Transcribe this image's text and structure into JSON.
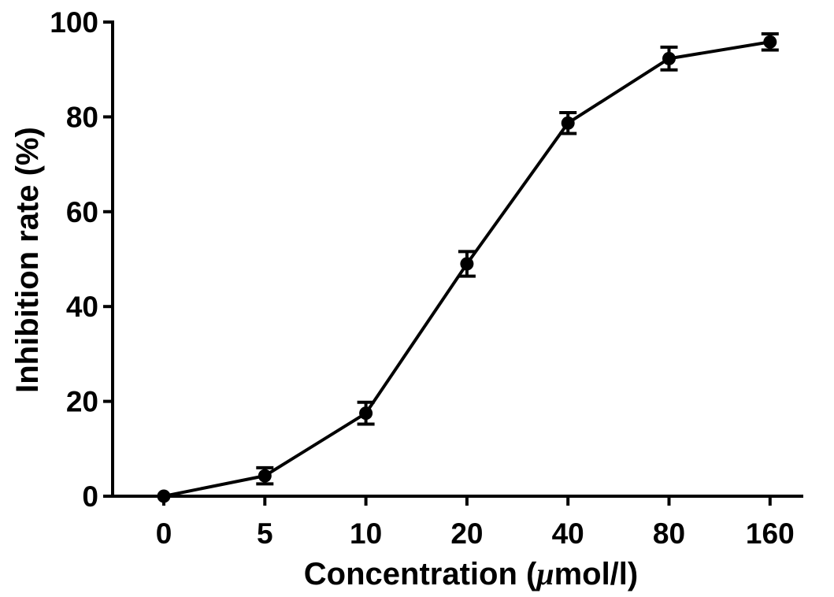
{
  "chart_data": {
    "type": "line",
    "title": "",
    "xlabel": {
      "prefix": "Concentration (",
      "mu": "μ",
      "suffix": "mol/l)"
    },
    "ylabel": "Inhibition rate (%)",
    "categories": [
      "0",
      "5",
      "10",
      "20",
      "40",
      "80",
      "160"
    ],
    "series": [
      {
        "values": [
          0,
          4.3,
          17.5,
          49.0,
          78.7,
          92.3,
          95.8
        ],
        "errors": [
          0.5,
          1.7,
          2.3,
          2.6,
          2.2,
          2.4,
          1.7
        ]
      }
    ],
    "ylim": [
      0,
      100
    ],
    "yticks": [
      0,
      20,
      40,
      60,
      80,
      100
    ],
    "grid": false,
    "legend": "none",
    "colors": {
      "line": "#000000",
      "marker": "#000000"
    }
  }
}
